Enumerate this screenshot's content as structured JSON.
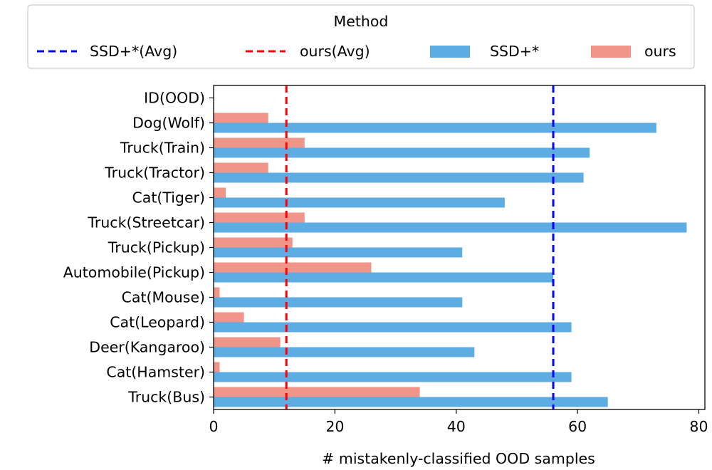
{
  "chart_data": {
    "type": "bar",
    "orientation": "horizontal",
    "categories": [
      "Truck(Bus)",
      "Cat(Hamster)",
      "Deer(Kangaroo)",
      "Cat(Leopard)",
      "Cat(Mouse)",
      "Automobile(Pickup)",
      "Truck(Pickup)",
      "Truck(Streetcar)",
      "Cat(Tiger)",
      "Truck(Tractor)",
      "Truck(Train)",
      "Dog(Wolf)",
      "ID(OOD)"
    ],
    "series": [
      {
        "name": "SSD+*",
        "color": "#5dade2",
        "values": [
          65,
          59,
          43,
          59,
          41,
          56,
          41,
          78,
          48,
          61,
          62,
          73,
          null
        ]
      },
      {
        "name": "ours",
        "color": "#f1948a",
        "values": [
          34,
          1,
          11,
          5,
          1,
          26,
          13,
          15,
          2,
          9,
          15,
          9,
          null
        ]
      }
    ],
    "reference_lines": [
      {
        "name": "SSD+*(Avg)",
        "x": 56,
        "color": "#0000ff",
        "style": "dashed"
      },
      {
        "name": "ours(Avg)",
        "x": 12,
        "color": "#ff0000",
        "style": "dashed"
      }
    ],
    "xlabel": "# mistakenly-classified OOD samples",
    "ylabel": "",
    "xlim": [
      0,
      81
    ],
    "xticks": [
      0,
      20,
      40,
      60,
      80
    ],
    "grid": false,
    "legend": {
      "title": "Method",
      "placement": "top",
      "columns": 4
    }
  }
}
